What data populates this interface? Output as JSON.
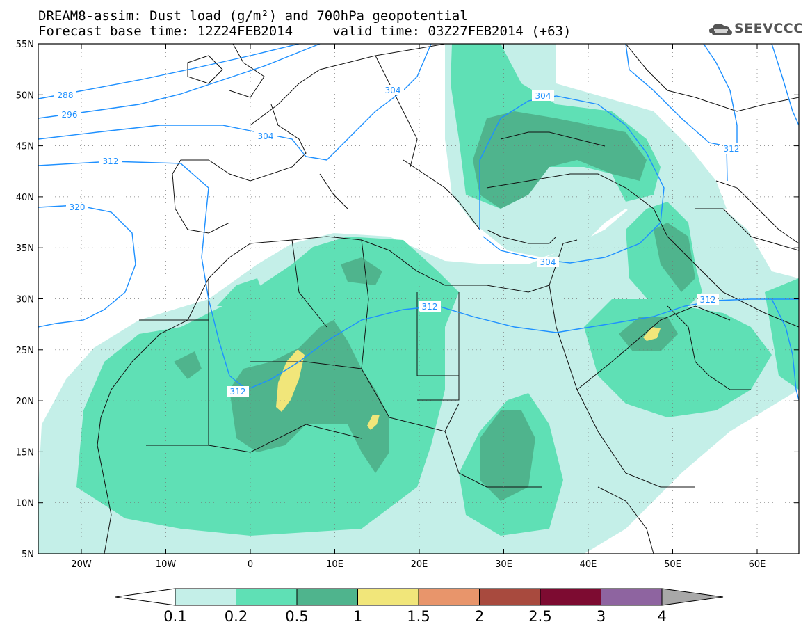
{
  "title": {
    "line1": "DREAM8-assim: Dust load (g/m²) and 700hPa geopotential",
    "line2": "Forecast base time: 12Z24FEB2014     valid time: 03Z27FEB2014 (+63)"
  },
  "logo": {
    "text": "SEEVCCC",
    "icon": "cloud-icon"
  },
  "axes": {
    "lat_labels": [
      "55N",
      "50N",
      "45N",
      "40N",
      "35N",
      "30N",
      "25N",
      "20N",
      "15N",
      "10N",
      "5N"
    ],
    "lon_labels": [
      "20W",
      "10W",
      "0",
      "10E",
      "20E",
      "30E",
      "40E",
      "50E",
      "60E"
    ]
  },
  "contours": [
    {
      "label": "288"
    },
    {
      "label": "296"
    },
    {
      "label": "304"
    },
    {
      "label": "304"
    },
    {
      "label": "304"
    },
    {
      "label": "304"
    },
    {
      "label": "312"
    },
    {
      "label": "312"
    },
    {
      "label": "312"
    },
    {
      "label": "312"
    },
    {
      "label": "320"
    },
    {
      "label": "312"
    }
  ],
  "colorbar": {
    "labels": [
      "0.1",
      "0.2",
      "0.5",
      "1",
      "1.5",
      "2",
      "2.5",
      "3",
      "4"
    ],
    "colors": [
      "#c4efe8",
      "#5fe0b5",
      "#4fb48d",
      "#f1e67a",
      "#e8956b",
      "#a84a3e",
      "#7d0b31",
      "#8e64a0",
      "#a8a8a8"
    ]
  },
  "colors": {
    "contour": "#1e90ff",
    "dust_low": "#c4efe8",
    "dust_mid": "#5fe0b5",
    "dust_high": "#4fb48d",
    "dust_peak": "#f1e67a"
  }
}
